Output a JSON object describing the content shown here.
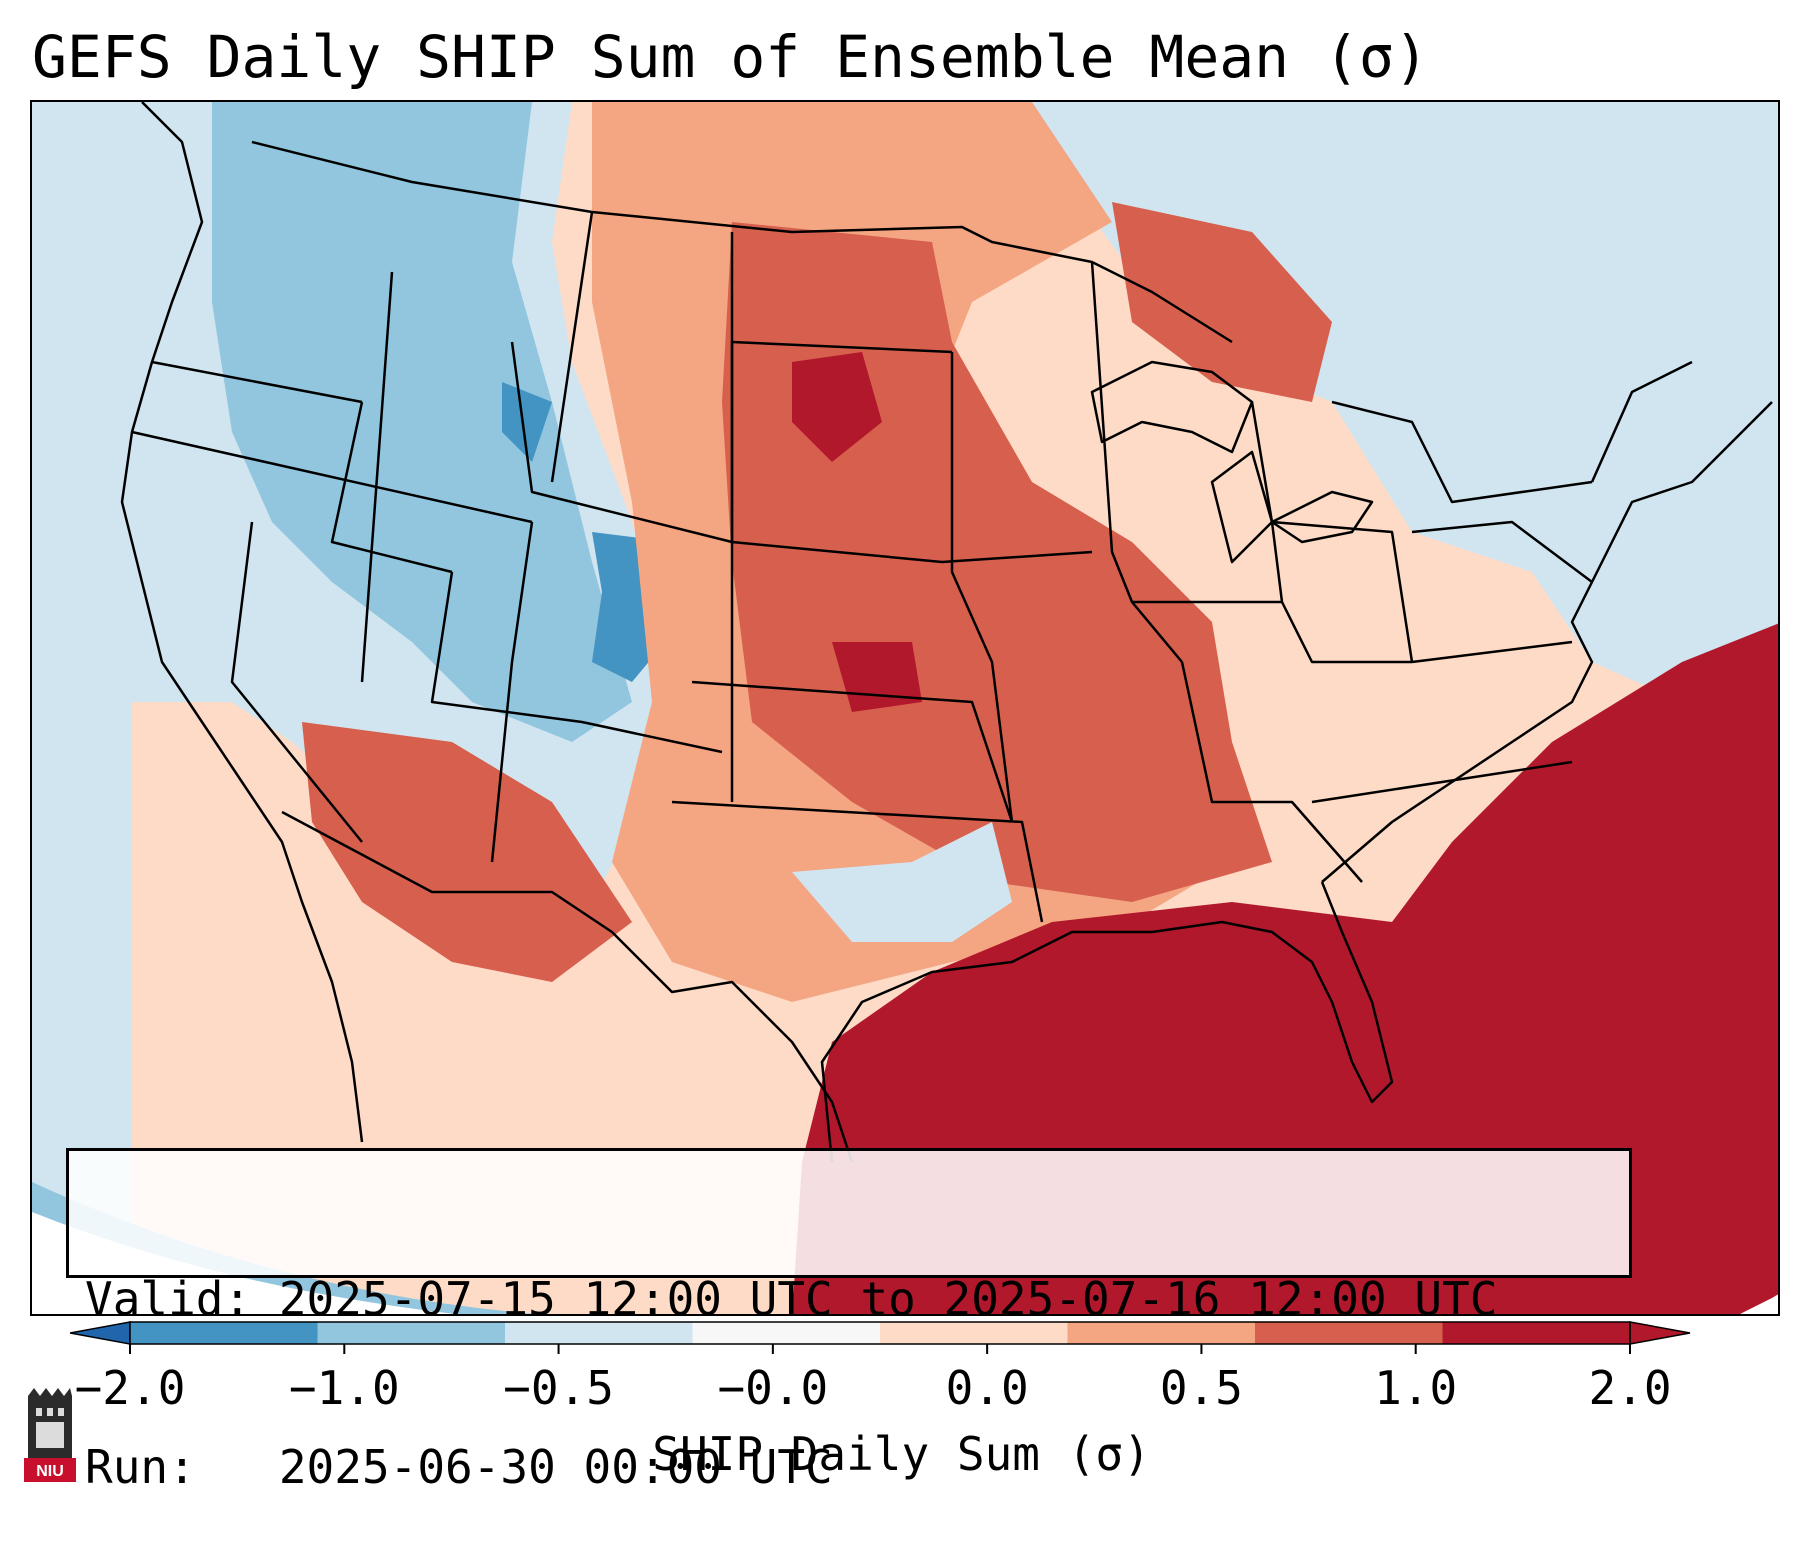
{
  "title": "GEFS Daily SHIP Sum of Ensemble Mean (σ)",
  "info": {
    "valid_line": "Valid: 2025-07-15 12:00 UTC to 2025-07-16 12:00 UTC",
    "run_line": "Run:   2025-06-30 00:00 UTC"
  },
  "colorbar": {
    "title": "SHIP Daily Sum (σ)",
    "tick_labels": [
      "−2.0",
      "−1.0",
      "−0.5",
      "−0.0",
      "0.0",
      "0.5",
      "1.0",
      "2.0"
    ],
    "colors": [
      "#4393c3",
      "#92c5de",
      "#d1e5f0",
      "#f7f7f7",
      "#fddbc7",
      "#f4a582",
      "#d6604d",
      "#b2182b"
    ],
    "under_color": "#2166ac",
    "over_color": "#b2182b"
  },
  "map": {
    "region": "Contiguous United States",
    "ocean_color": "#d1e5f0",
    "border_color": "#000000"
  },
  "logo": {
    "name": "niu-logo",
    "text": "NIU"
  }
}
